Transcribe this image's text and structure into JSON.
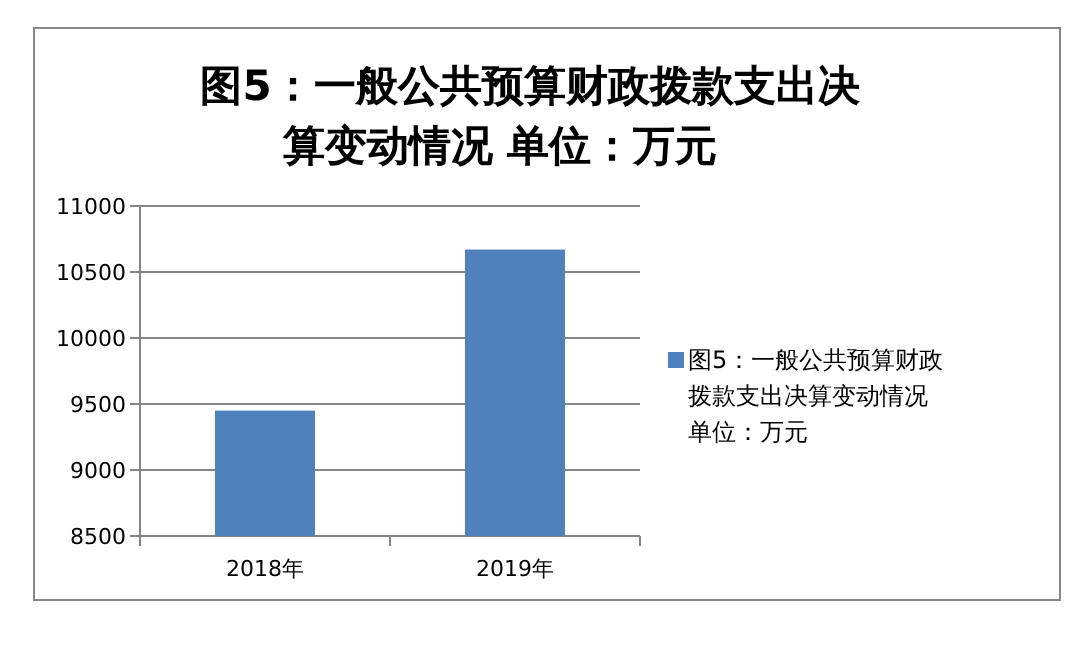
{
  "chart_data": {
    "type": "bar",
    "title": "图5：一般公共预算财政拨款支出决算变动情况 单位：万元",
    "categories": [
      "2018年",
      "2019年"
    ],
    "series": [
      {
        "name": "图5：一般公共预算财政拨款支出决算变动情况单位：万元",
        "color": "#4f81bd",
        "values": [
          9450,
          10670
        ]
      }
    ],
    "ylim": [
      8500,
      11000
    ],
    "yticks": [
      8500,
      9000,
      9500,
      10000,
      10500,
      11000
    ],
    "grid": "y",
    "legend": "right"
  }
}
